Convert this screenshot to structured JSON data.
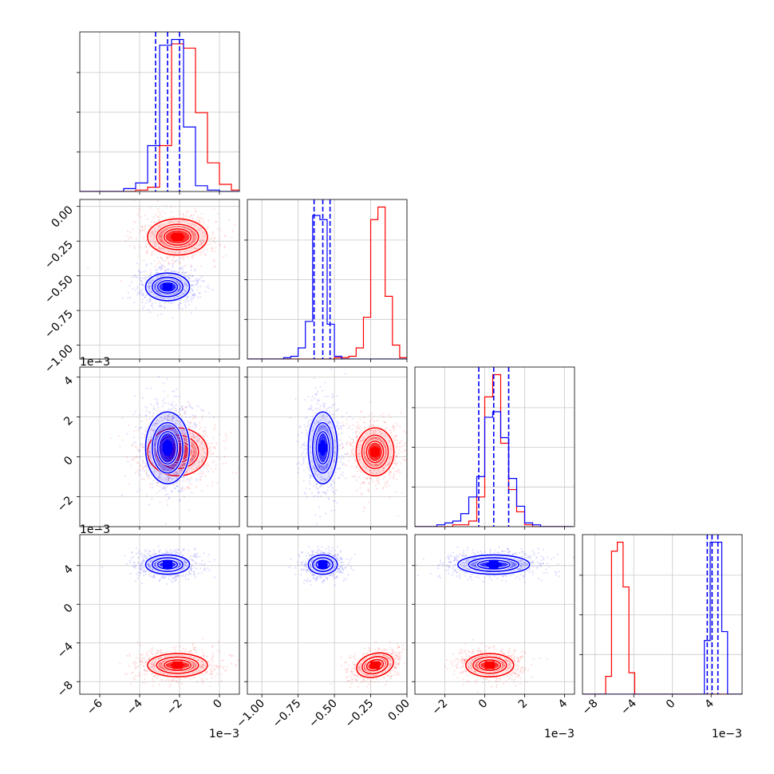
{
  "chart_data": {
    "type": "corner",
    "dims": 4,
    "series": [
      {
        "color": "#ff0000",
        "mean": [
          -0.0021,
          -0.22,
          0.00025,
          -0.0063
        ],
        "sd": [
          0.00075,
          0.065,
          0.0006,
          0.0006
        ],
        "corr": {
          "3-1": 0.45
        },
        "n_points": 700,
        "quantile_lines": false
      },
      {
        "color": "#0000ff",
        "mean": [
          -0.0026,
          -0.58,
          0.00045,
          0.0041
        ],
        "sd": [
          0.00055,
          0.05,
          0.0009,
          0.0005
        ],
        "corr": {},
        "n_points": 700,
        "quantile_lines": true
      }
    ],
    "hist1d": [
      {
        "xlim": [
          -0.007,
          0.001
        ],
        "bins": [
          -0.0072,
          -0.0066,
          -0.006,
          -0.0054,
          -0.0048,
          -0.0042,
          -0.0036,
          -0.003,
          -0.0024,
          -0.0018,
          -0.0012,
          -0.0006,
          0.0,
          0.0006
        ],
        "series_counts": [
          [
            0,
            0,
            0,
            0,
            0,
            1,
            3,
            32,
            103,
            100,
            55,
            20,
            5,
            1
          ],
          [
            0,
            0,
            0,
            0,
            2,
            6,
            32,
            102,
            106,
            45,
            4,
            1,
            0,
            0
          ]
        ],
        "quantiles": [
          -0.0032,
          -0.0026,
          -0.002
        ]
      },
      {
        "xlim": [
          -1.1,
          0.0
        ],
        "bins": [
          -1.1,
          -1.05,
          -1.0,
          -0.95,
          -0.9,
          -0.85,
          -0.8,
          -0.75,
          -0.7,
          -0.65,
          -0.6,
          -0.55,
          -0.5,
          -0.45,
          -0.4,
          -0.35,
          -0.3,
          -0.25,
          -0.2,
          -0.15,
          -0.1,
          -0.05
        ],
        "series_counts": [
          [
            0,
            0,
            0,
            0,
            0,
            0,
            0,
            0,
            0,
            0,
            0,
            0,
            1,
            1,
            2,
            8,
            30,
            100,
            109,
            45,
            10,
            1
          ],
          [
            0,
            0,
            0,
            0,
            0,
            1,
            2,
            8,
            27,
            103,
            100,
            25,
            2,
            0,
            0,
            0,
            0,
            0,
            0,
            0,
            0,
            0
          ]
        ],
        "quantiles": [
          -0.64,
          -0.58,
          -0.53
        ]
      },
      {
        "xlim": [
          -0.0035,
          0.0045
        ],
        "bins": [
          -0.0036,
          -0.0032,
          -0.0028,
          -0.0024,
          -0.002,
          -0.0016,
          -0.0012,
          -0.0008,
          -0.0004,
          0.0,
          0.0004,
          0.0008,
          0.0012,
          0.0016,
          0.002,
          0.0024,
          0.0028,
          0.0032,
          0.0036,
          0.004
        ],
        "series_counts": [
          [
            0,
            0,
            0,
            0,
            0,
            1,
            1,
            3,
            16,
            70,
            82,
            45,
            20,
            8,
            1,
            0,
            0,
            0,
            0,
            0
          ],
          [
            0,
            0,
            0,
            1,
            2,
            3,
            7,
            16,
            27,
            59,
            62,
            48,
            26,
            11,
            2,
            1,
            0,
            0,
            0,
            0
          ]
        ],
        "quantiles": [
          -0.0003,
          0.00045,
          0.0012
        ]
      },
      {
        "xlim": [
          -0.0093,
          0.0072
        ],
        "bins": [
          -0.0093,
          -0.0087,
          -0.0081,
          -0.0075,
          -0.0069,
          -0.0063,
          -0.0057,
          -0.0051,
          -0.0045,
          -0.0039,
          -0.0033,
          -0.0027,
          -0.0021,
          -0.0015,
          -0.0009,
          -0.0003,
          0.0003,
          0.0009,
          0.0015,
          0.0021,
          0.0027,
          0.0033,
          0.0039,
          0.0045,
          0.0051,
          0.0057,
          0.0063,
          0.0069
        ],
        "series_counts": [
          [
            0,
            0,
            0,
            0,
            10,
            80,
            85,
            60,
            12,
            0,
            0,
            0,
            0,
            0,
            0,
            0,
            0,
            0,
            0,
            0,
            0,
            0,
            0,
            0,
            0,
            0,
            0,
            0
          ],
          [
            0,
            0,
            0,
            0,
            0,
            0,
            0,
            0,
            0,
            0,
            0,
            0,
            0,
            0,
            0,
            0,
            0,
            0,
            0,
            0,
            0,
            30,
            85,
            85,
            35,
            0,
            0,
            0
          ]
        ],
        "quantiles": [
          0.0036,
          0.0041,
          0.0047
        ]
      }
    ],
    "axes": [
      {
        "lim": [
          -0.007,
          0.001
        ],
        "ticks": [
          -6,
          -4,
          -2,
          0
        ],
        "multiplier": "1e−3"
      },
      {
        "lim": [
          -1.1,
          0.0
        ],
        "ticks": [
          -1.0,
          -0.75,
          -0.5,
          -0.25,
          0.0
        ],
        "tick_labels": [
          "−1.00",
          "−0.75",
          "−0.50",
          "−0.25",
          "0.00"
        ]
      },
      {
        "lim": [
          -0.0035,
          0.0045
        ],
        "ticks": [
          -2,
          0,
          2,
          4
        ],
        "multiplier": "1e−3"
      },
      {
        "lim": [
          -0.0093,
          0.0072
        ],
        "ticks": [
          -8,
          -4,
          0,
          4
        ],
        "multiplier": "1e−3"
      }
    ],
    "ylims": [
      [
        -1.1,
        0.05
      ],
      [
        -0.0035,
        0.0045
      ],
      [
        -0.0093,
        0.0072
      ]
    ],
    "yticks": [
      {
        "ticks": [
          0.0,
          -0.25,
          -0.5,
          -0.75,
          -1.0
        ],
        "tick_labels": [
          "0.00",
          "−0.25",
          "−0.50",
          "−0.75",
          "−1.00"
        ]
      },
      {
        "ticks": [
          4,
          2,
          0,
          -2
        ],
        "multiplier": "1e−3"
      },
      {
        "ticks": [
          4,
          0,
          -4,
          -8
        ],
        "multiplier": "1e−3"
      }
    ],
    "grid": true
  }
}
